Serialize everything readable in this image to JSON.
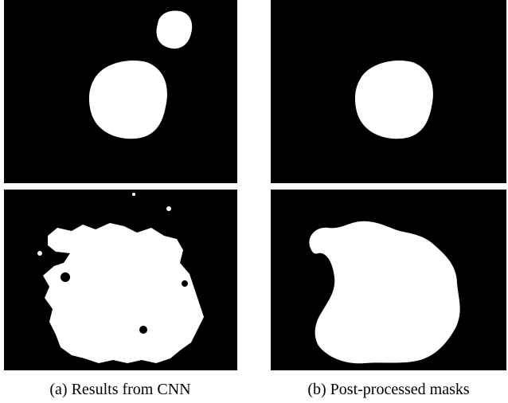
{
  "figure": {
    "panels": [
      {
        "caption": "(a) Results from CNN"
      },
      {
        "caption": "(b) Post-processed masks"
      }
    ]
  }
}
